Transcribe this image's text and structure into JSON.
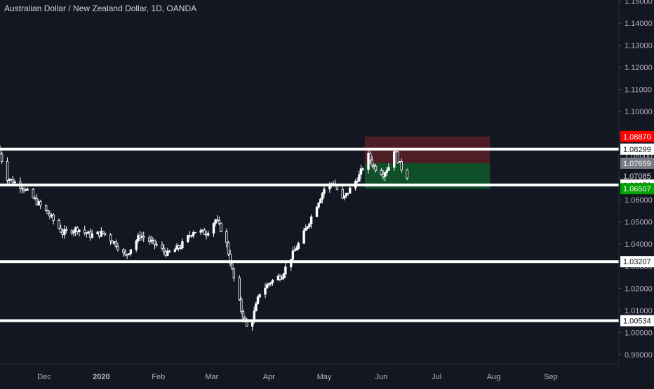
{
  "header": {
    "title": "Australian Dollar / New Zealand Dollar, 1D, OANDA"
  },
  "colors": {
    "background": "#131722",
    "candle": "#ffffff",
    "level_line": "#ffffff",
    "stop_label": "#ff0000",
    "target_label": "#00a000",
    "current_label": "#787b86",
    "risk_zone": "#5a1e26",
    "reward_zone": "#0f5a2a",
    "axis_text": "#b2b5be"
  },
  "chart_data": {
    "type": "candlestick",
    "title": "Australian Dollar / New Zealand Dollar, 1D, OANDA",
    "xlabel": "",
    "ylabel": "",
    "ylim": [
      0.9855,
      1.1505
    ],
    "y_ticks": [
      "1.15000",
      "1.14000",
      "1.13000",
      "1.12000",
      "1.11000",
      "1.10000",
      "1.09000",
      "1.08000",
      "1.07000",
      "1.06000",
      "1.05000",
      "1.04000",
      "1.03000",
      "1.02000",
      "1.01000",
      "1.00000",
      "0.99000"
    ],
    "x_ticks": [
      "Dec",
      "2020",
      "Feb",
      "Mar",
      "Apr",
      "May",
      "Jun",
      "Jul",
      "Aug",
      "Sep"
    ],
    "x_tick_dates": [
      "2019-12-01",
      "2020-01-01",
      "2020-02-01",
      "2020-03-01",
      "2020-04-01",
      "2020-05-01",
      "2020-06-01",
      "2020-07-01",
      "2020-08-01",
      "2020-09-01"
    ],
    "x_range": [
      "2019-11-07",
      "2020-10-08"
    ],
    "horizontal_levels": [
      1.08299,
      1.06676,
      1.03207,
      1.00534
    ],
    "price_labels": [
      {
        "value": 1.0887,
        "label": "1.08870",
        "kind": "stop"
      },
      {
        "value": 1.08299,
        "label": "1.08299",
        "kind": "level"
      },
      {
        "value": 1.07659,
        "label": "1.07659",
        "kind": "current"
      },
      {
        "value": 1.07085,
        "label": "1.07085",
        "kind": "plain"
      },
      {
        "value": 1.06676,
        "label": "1.06676",
        "kind": "level"
      },
      {
        "value": 1.06507,
        "label": "1.06507",
        "kind": "target"
      },
      {
        "value": 1.03207,
        "label": "1.03207",
        "kind": "level"
      },
      {
        "value": 1.00534,
        "label": "1.00534",
        "kind": "level"
      }
    ],
    "position": {
      "start": "2020-05-23",
      "end": "2020-07-30",
      "stop": 1.0887,
      "entry": 1.07659,
      "target": 1.06507
    },
    "price_path": [
      [
        "2019-11-07",
        1.0835
      ],
      [
        "2019-11-12",
        1.07
      ],
      [
        "2019-11-20",
        1.066
      ],
      [
        "2019-11-28",
        1.059
      ],
      [
        "2019-12-05",
        1.053
      ],
      [
        "2019-12-12",
        1.045
      ],
      [
        "2019-12-20",
        1.047
      ],
      [
        "2019-12-27",
        1.044
      ],
      [
        "2020-01-03",
        1.045
      ],
      [
        "2020-01-10",
        1.04
      ],
      [
        "2020-01-15",
        1.0345
      ],
      [
        "2020-01-23",
        1.044
      ],
      [
        "2020-01-31",
        1.04
      ],
      [
        "2020-02-07",
        1.0355
      ],
      [
        "2020-02-14",
        1.039
      ],
      [
        "2020-02-21",
        1.046
      ],
      [
        "2020-02-28",
        1.045
      ],
      [
        "2020-03-04",
        1.051
      ],
      [
        "2020-03-09",
        1.044
      ],
      [
        "2020-03-13",
        1.028
      ],
      [
        "2020-03-18",
        1.01
      ],
      [
        "2020-03-22",
        1.0
      ],
      [
        "2020-03-28",
        1.018
      ],
      [
        "2020-04-03",
        1.023
      ],
      [
        "2020-04-09",
        1.026
      ],
      [
        "2020-04-14",
        1.034
      ],
      [
        "2020-04-20",
        1.043
      ],
      [
        "2020-04-27",
        1.056
      ],
      [
        "2020-05-02",
        1.065
      ],
      [
        "2020-05-07",
        1.068
      ],
      [
        "2020-05-12",
        1.06
      ],
      [
        "2020-05-17",
        1.066
      ],
      [
        "2020-05-21",
        1.071
      ],
      [
        "2020-05-26",
        1.08
      ],
      [
        "2020-05-29",
        1.075
      ],
      [
        "2020-06-03",
        1.072
      ],
      [
        "2020-06-07",
        1.076
      ],
      [
        "2020-06-09",
        1.083
      ],
      [
        "2020-06-12",
        1.076
      ],
      [
        "2020-06-15",
        1.071
      ]
    ]
  }
}
